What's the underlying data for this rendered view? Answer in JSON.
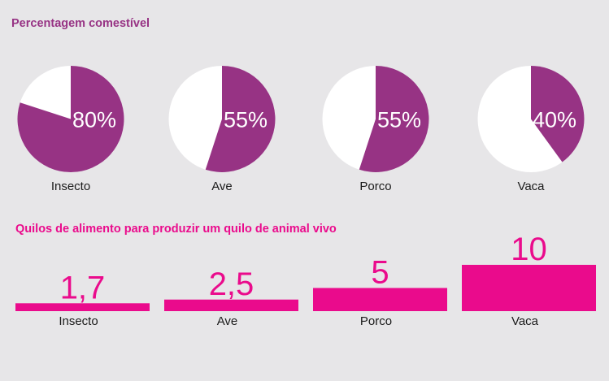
{
  "colors": {
    "background": "#e7e6e8",
    "pie_fill": "#973384",
    "pie_rest": "#ffffff",
    "bar_fill": "#ea0b8c",
    "label_text": "#1a1a1a"
  },
  "chart_data": [
    {
      "type": "pie",
      "title": "Percentagem comestível",
      "categories": [
        "Insecto",
        "Ave",
        "Porco",
        "Vaca"
      ],
      "values": [
        80,
        55,
        55,
        40
      ],
      "value_labels": [
        "80%",
        "55%",
        "55%",
        "40%"
      ],
      "unit": "%",
      "legend": "none"
    },
    {
      "type": "bar",
      "title": "Quilos de alimento para produzir um quilo de animal vivo",
      "categories": [
        "Insecto",
        "Ave",
        "Porco",
        "Vaca"
      ],
      "values": [
        1.7,
        2.5,
        5,
        10
      ],
      "value_labels": [
        "1,7",
        "2,5",
        "5",
        "10"
      ],
      "xlabel": "",
      "ylabel": "",
      "ylim": [
        0,
        10
      ],
      "grid": false,
      "legend": "none"
    }
  ]
}
